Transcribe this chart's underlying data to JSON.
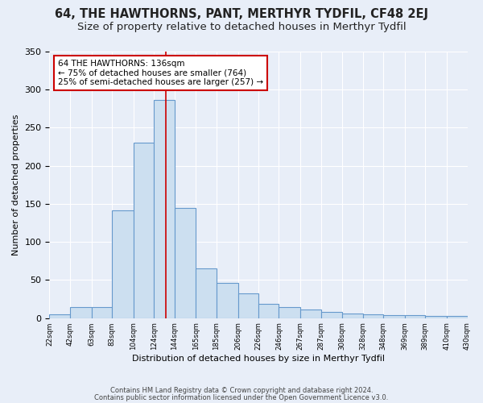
{
  "title": "64, THE HAWTHORNS, PANT, MERTHYR TYDFIL, CF48 2EJ",
  "subtitle": "Size of property relative to detached houses in Merthyr Tydfil",
  "xlabel": "Distribution of detached houses by size in Merthyr Tydfil",
  "ylabel": "Number of detached properties",
  "footnote1": "Contains HM Land Registry data © Crown copyright and database right 2024.",
  "footnote2": "Contains public sector information licensed under the Open Government Licence v3.0.",
  "bar_left_edges": [
    22,
    42,
    63,
    83,
    104,
    124,
    144,
    165,
    185,
    206,
    226,
    246,
    267,
    287,
    308,
    328,
    348,
    369,
    389,
    410
  ],
  "bar_widths": [
    20,
    21,
    20,
    21,
    20,
    20,
    21,
    20,
    21,
    20,
    20,
    21,
    20,
    21,
    20,
    20,
    21,
    20,
    21,
    20
  ],
  "bar_heights": [
    5,
    14,
    14,
    141,
    230,
    286,
    145,
    65,
    46,
    33,
    19,
    14,
    11,
    8,
    6,
    5,
    4,
    4,
    3,
    3
  ],
  "bar_color": "#ccdff0",
  "bar_edge_color": "#6699cc",
  "tick_labels": [
    "22sqm",
    "42sqm",
    "63sqm",
    "83sqm",
    "104sqm",
    "124sqm",
    "144sqm",
    "165sqm",
    "185sqm",
    "206sqm",
    "226sqm",
    "246sqm",
    "267sqm",
    "287sqm",
    "308sqm",
    "328sqm",
    "348sqm",
    "369sqm",
    "389sqm",
    "410sqm",
    "430sqm"
  ],
  "tick_positions": [
    22,
    42,
    63,
    83,
    104,
    124,
    144,
    165,
    185,
    206,
    226,
    246,
    267,
    287,
    308,
    328,
    348,
    369,
    389,
    410,
    430
  ],
  "red_line_x": 136,
  "red_line_color": "#cc0000",
  "annotation_text": "64 THE HAWTHORNS: 136sqm\n← 75% of detached houses are smaller (764)\n25% of semi-detached houses are larger (257) →",
  "annotation_box_color": "#ffffff",
  "annotation_border_color": "#cc0000",
  "ylim": [
    0,
    350
  ],
  "xlim": [
    22,
    430
  ],
  "bg_color": "#e8eef8",
  "plot_bg_color": "#e8eef8",
  "title_fontsize": 10.5,
  "subtitle_fontsize": 9.5,
  "grid_color": "#ffffff",
  "yticks": [
    0,
    50,
    100,
    150,
    200,
    250,
    300,
    350
  ]
}
